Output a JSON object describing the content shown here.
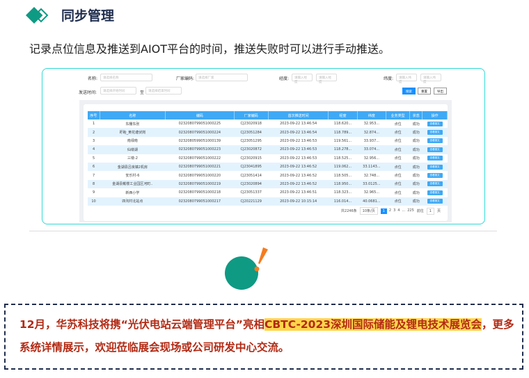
{
  "header": {
    "title": "同步管理",
    "subtitle": "记录点位信息及推送到AIOT平台的时间，推送失败时可以进行手动推送。"
  },
  "filters": {
    "name_label": "名称:",
    "name_placeholder": "请选择名称",
    "vendor_label": "厂家编码:",
    "vendor_placeholder": "请选择厂家",
    "lng_label": "经度:",
    "lng_min": "请输入经度",
    "lng_max": "请输入经度",
    "lat_label": "纬度:",
    "lat_min": "请输入纬度",
    "lat_max": "请输入纬度",
    "time_label": "发送时间:",
    "time_start": "请选择开始时间",
    "to": "至",
    "time_end": "请选择结束时间",
    "search": "搜索",
    "reset": "重置",
    "export": "导出"
  },
  "table": {
    "columns": [
      "序号",
      "名称",
      "编码",
      "厂家编码",
      "首次推送时间",
      "经度",
      "纬度",
      "业务类型",
      "状态",
      "操作"
    ],
    "rows": [
      [
        "1",
        "东棚东张",
        "0232080799051000225",
        "CJ23020918",
        "2023-09-22 13:46:54",
        "118.620...",
        "32.953...",
        "点位",
        "成功",
        "查看报文"
      ],
      [
        "2",
        "盱眙_黄花塘伏岗",
        "0232080799051000224",
        "CJ23051284",
        "2023-09-22 13:46:54",
        "118.789...",
        "32.874...",
        "点位",
        "成功",
        "查看报文"
      ],
      [
        "3",
        "南禄南",
        "0232080599051000139",
        "CJ23051295",
        "2023-09-22 13:46:53",
        "119.561...",
        "33.937...",
        "点位",
        "成功",
        "查看报文"
      ],
      [
        "4",
        "仙墩湖",
        "0232080799051000223",
        "CJ23020872",
        "2023-09-22 13:46:53",
        "118.278...",
        "33.074...",
        "点位",
        "成功",
        "查看报文"
      ],
      [
        "5",
        "三墩-2",
        "0232080799051000222",
        "CJ23020915",
        "2023-09-22 13:46:53",
        "118.525...",
        "32.956...",
        "点位",
        "成功",
        "查看报文"
      ],
      [
        "6",
        "金湖县吕良镇2机房",
        "0232080799051000221",
        "CJ23041895",
        "2023-09-22 13:46:52",
        "119.062...",
        "33.1143...",
        "点位",
        "成功",
        "查看报文"
      ],
      [
        "7",
        "安乐村-6",
        "0232080799051000220",
        "CJ23051414",
        "2023-09-22 13:46:52",
        "118.505...",
        "32.748...",
        "点位",
        "成功",
        "查看报文"
      ],
      [
        "8",
        "金湖县戴楼工业园区河町..",
        "0232080799051000219",
        "CJ23020894",
        "2023-09-22 13:46:52",
        "118.950...",
        "33.0125...",
        "点位",
        "成功",
        "查看报文"
      ],
      [
        "9",
        "新西小学",
        "0232080799051000218",
        "CJ23051337",
        "2023-09-22 13:46:51",
        "118.323...",
        "32.965...",
        "点位",
        "成功",
        "查看报文"
      ],
      [
        "10",
        "四沟村北站点",
        "0232080799051000217",
        "CJ20221129",
        "2023-09-22 10:15:14",
        "116.014...",
        "40.0681...",
        "点位",
        "成功",
        "查看报文"
      ]
    ]
  },
  "pager": {
    "total": "共2246条",
    "size": "10条/页",
    "pages": [
      "1",
      "2",
      "3",
      "4",
      "...",
      "225"
    ],
    "goto": "前往",
    "goto_value": "1",
    "page_unit": "页"
  },
  "note": {
    "part1": "12月，华苏科技将携“光伏电站云端管理平台”亮相",
    "highlight1": "CBTC-2023深圳国际储能及锂电技术展",
    "highlight2": "览会",
    "part2": "，更多系统详情展示，欢迎莅临展会现场或公司研发中心交流。"
  },
  "colors": {
    "accent": "#3fa9f5",
    "teal": "#0f9a84",
    "orange": "#f57c1f",
    "note_text": "#b22a14",
    "highlight": "#ffd54a"
  }
}
